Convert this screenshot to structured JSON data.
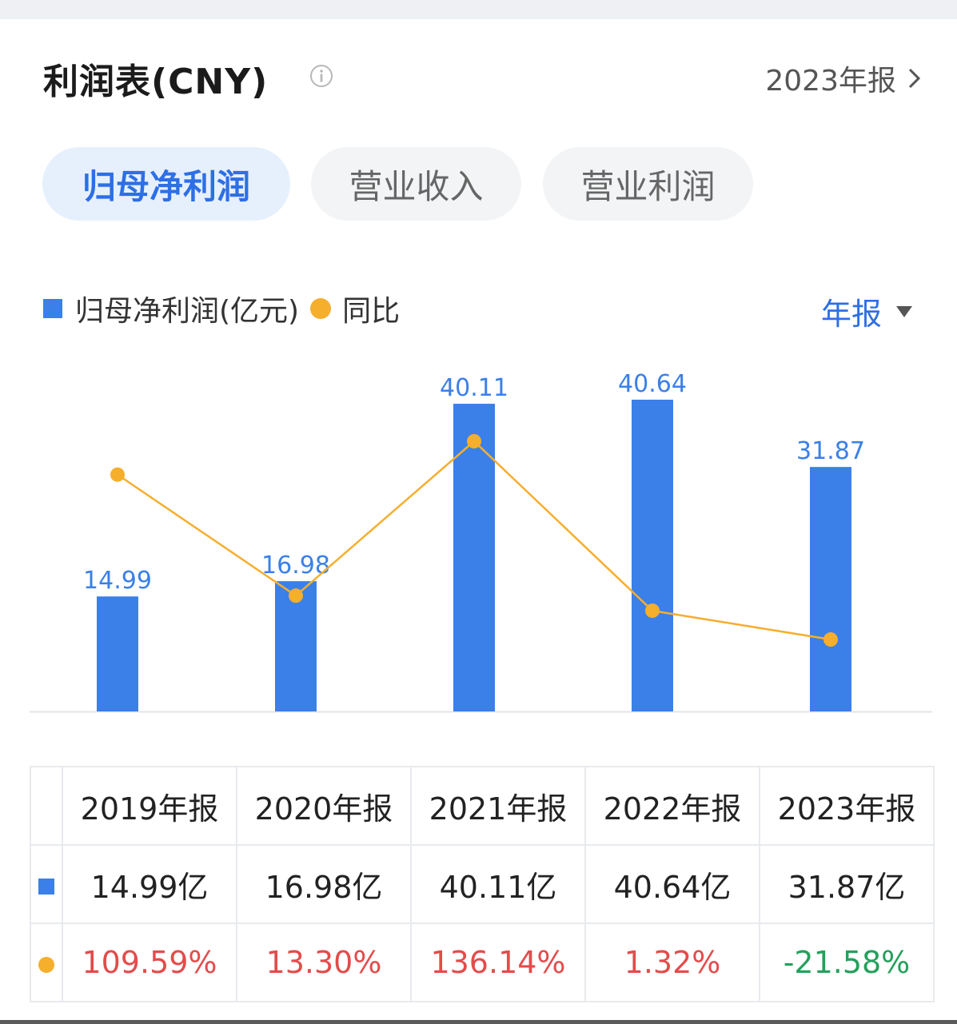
{
  "header": {
    "title": "利润表(CNY)",
    "report_link": "2023年报"
  },
  "tabs": [
    {
      "label": "归母净利润",
      "active": true
    },
    {
      "label": "营业收入",
      "active": false
    },
    {
      "label": "营业利润",
      "active": false
    }
  ],
  "legend": {
    "bar_label": "归母净利润(亿元)",
    "line_label": "同比"
  },
  "period_selector": "年报",
  "colors": {
    "bar": "#3a80e8",
    "line": "#f6ae2d",
    "label": "#3a80e8",
    "positive": "#e44b4b",
    "negative": "#25a05c",
    "accent": "#2d6fe5"
  },
  "chart_data": {
    "type": "bar",
    "categories": [
      "2019年报",
      "2020年报",
      "2021年报",
      "2022年报",
      "2023年报"
    ],
    "series": [
      {
        "name": "归母净利润(亿元)",
        "type": "bar",
        "values": [
          14.99,
          16.98,
          40.11,
          40.64,
          31.87
        ]
      },
      {
        "name": "同比",
        "type": "line",
        "values": [
          109.59,
          13.3,
          136.14,
          1.32,
          -21.58
        ]
      }
    ],
    "data_labels": [
      "14.99",
      "16.98",
      "40.11",
      "40.64",
      "31.87"
    ],
    "grid": false,
    "legend_position": "top-left"
  },
  "table": {
    "headers": [
      "2019年报",
      "2020年报",
      "2021年报",
      "2022年报",
      "2023年报"
    ],
    "profit_row": [
      "14.99亿",
      "16.98亿",
      "40.11亿",
      "40.64亿",
      "31.87亿"
    ],
    "yoy_row": [
      "109.59%",
      "13.30%",
      "136.14%",
      "1.32%",
      "-21.58%"
    ]
  }
}
